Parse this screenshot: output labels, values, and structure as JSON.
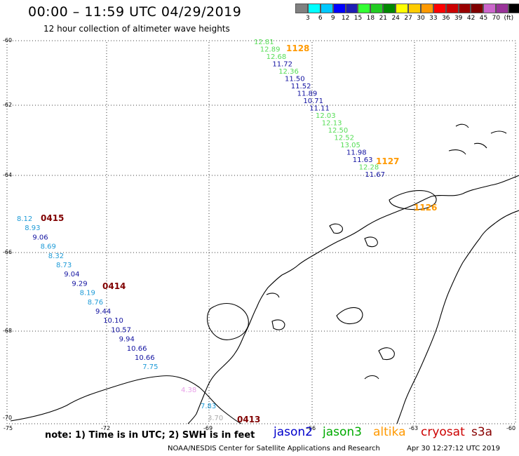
{
  "header": {
    "title": "00:00  –  11:59  UTC  04/29/2019",
    "subtitle": "12 hour collection of altimeter wave heights"
  },
  "legend": {
    "colors": [
      "#808080",
      "#00ffff",
      "#00c8ff",
      "#0000ff",
      "#1e1eb4",
      "#33ff33",
      "#22cc22",
      "#008800",
      "#ffff00",
      "#ffcc00",
      "#ff9900",
      "#ff0000",
      "#cc0000",
      "#990000",
      "#800000",
      "#cc66cc",
      "#993399",
      "#000000"
    ],
    "labels": [
      "3",
      "6",
      "9",
      "12",
      "15",
      "18",
      "21",
      "24",
      "27",
      "30",
      "33",
      "36",
      "39",
      "42",
      "45",
      "70",
      "(ft)"
    ]
  },
  "axes": {
    "lat_labels": [
      "-60",
      "-62",
      "-64",
      "-66",
      "-68",
      "-70"
    ],
    "lon_labels": [
      "-75",
      "-72",
      "-69",
      "-66",
      "-63",
      "-60"
    ]
  },
  "tracks": {
    "left": {
      "times": [
        {
          "text": "0415",
          "color": "#800000"
        },
        {
          "text": "0414",
          "color": "#800000"
        },
        {
          "text": "0413",
          "color": "#800000"
        }
      ],
      "values": [
        {
          "text": "8.12",
          "color": "#1e9bd7"
        },
        {
          "text": "8.93",
          "color": "#1e9bd7"
        },
        {
          "text": "9.06",
          "color": "#1212a0"
        },
        {
          "text": "8.69",
          "color": "#1e9bd7"
        },
        {
          "text": "8.32",
          "color": "#1e9bd7"
        },
        {
          "text": "8.73",
          "color": "#1e9bd7"
        },
        {
          "text": "9.04",
          "color": "#1212a0"
        },
        {
          "text": "9.29",
          "color": "#1212a0"
        },
        {
          "text": "8.19",
          "color": "#1e9bd7"
        },
        {
          "text": "8.76",
          "color": "#1e9bd7"
        },
        {
          "text": "9.44",
          "color": "#1212a0"
        },
        {
          "text": "10.10",
          "color": "#1212a0"
        },
        {
          "text": "10.57",
          "color": "#1212a0"
        },
        {
          "text": "9.94",
          "color": "#1212a0"
        },
        {
          "text": "10.66",
          "color": "#1212a0"
        },
        {
          "text": "10.66",
          "color": "#1212a0"
        },
        {
          "text": "7.75",
          "color": "#1e9bd7"
        },
        {
          "text": "4.38",
          "color": "#e8a0e8"
        },
        {
          "text": "7.83",
          "color": "#1e9bd7"
        },
        {
          "text": "3.70",
          "color": "#aaaaaa"
        }
      ]
    },
    "right": {
      "times": [
        {
          "text": "1128",
          "color": "#ff9900"
        },
        {
          "text": "1127",
          "color": "#ff9900"
        },
        {
          "text": "1126",
          "color": "#ff9900"
        }
      ],
      "values": [
        {
          "text": "12.81",
          "color": "#55dd55"
        },
        {
          "text": "12.89",
          "color": "#55dd55"
        },
        {
          "text": "12.68",
          "color": "#55dd55"
        },
        {
          "text": "11.72",
          "color": "#1212a0"
        },
        {
          "text": "12.36",
          "color": "#55dd55"
        },
        {
          "text": "11.50",
          "color": "#1212a0"
        },
        {
          "text": "11.52",
          "color": "#1212a0"
        },
        {
          "text": "11.89",
          "color": "#1212a0"
        },
        {
          "text": "10.71",
          "color": "#1212a0"
        },
        {
          "text": "11.11",
          "color": "#1212a0"
        },
        {
          "text": "12.03",
          "color": "#55dd55"
        },
        {
          "text": "12.13",
          "color": "#55dd55"
        },
        {
          "text": "12.50",
          "color": "#55dd55"
        },
        {
          "text": "12.52",
          "color": "#55dd55"
        },
        {
          "text": "13.05",
          "color": "#55dd55"
        },
        {
          "text": "11.98",
          "color": "#1212a0"
        },
        {
          "text": "11.63",
          "color": "#1212a0"
        },
        {
          "text": "12.28",
          "color": "#55dd55"
        },
        {
          "text": "11.67",
          "color": "#1212a0"
        }
      ]
    }
  },
  "footer": {
    "note": "note:  1)  Time is in UTC;  2)  SWH is in feet",
    "satellites": [
      {
        "name": "jason2",
        "color": "#0000cc"
      },
      {
        "name": "jason3",
        "color": "#00aa00"
      },
      {
        "name": "altika",
        "color": "#ff9900"
      },
      {
        "name": "cryosat",
        "color": "#cc0000"
      },
      {
        "name": "s3a",
        "color": "#880000"
      }
    ],
    "credit": "NOAA/NESDIS Center for Satellite Applications and Research",
    "timestamp": "Apr 30 12:27:12 UTC 2019"
  }
}
